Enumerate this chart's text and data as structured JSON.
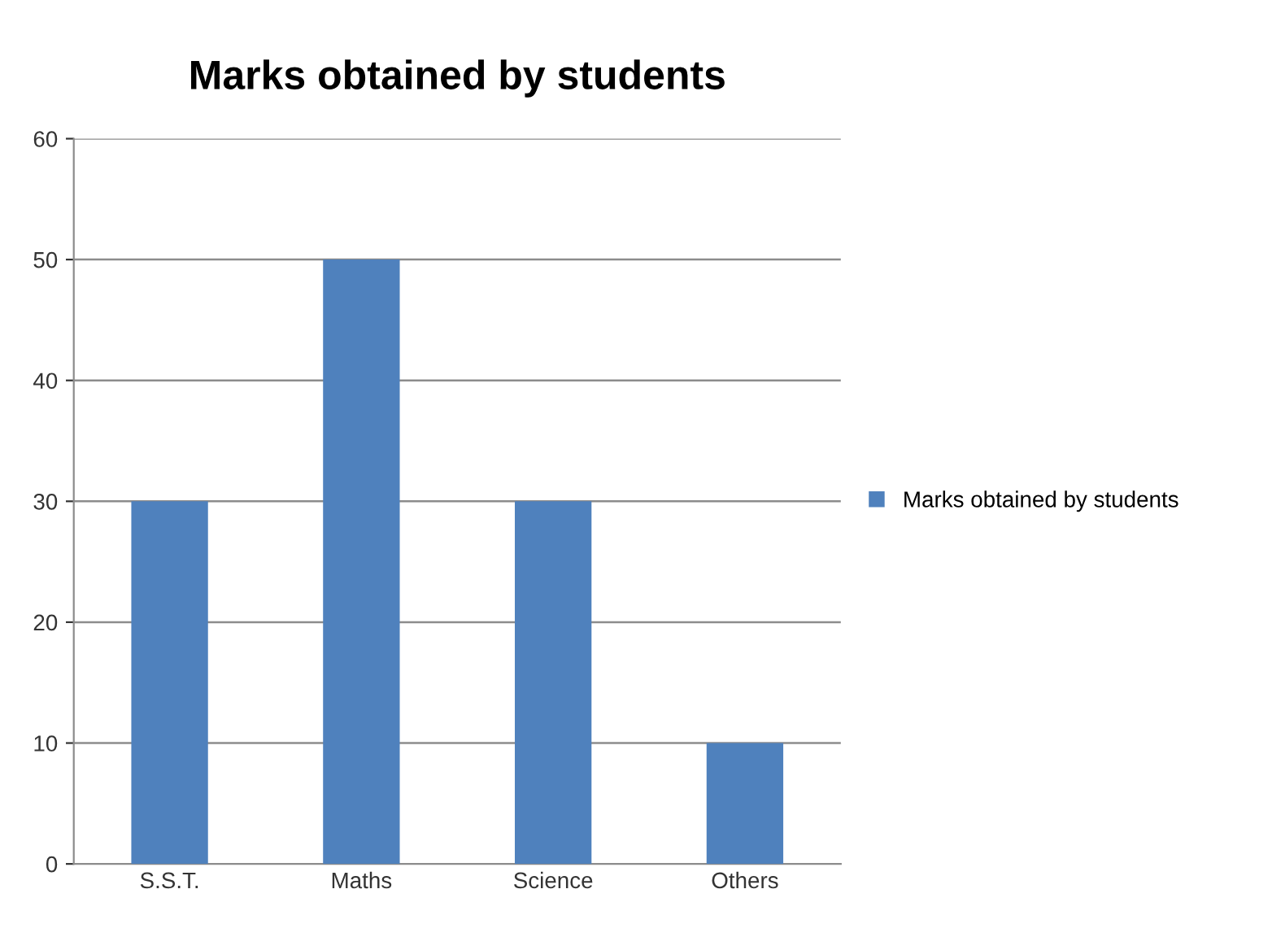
{
  "chart_data": {
    "type": "bar",
    "title": "Marks obtained by students",
    "categories": [
      "S.S.T.",
      "Maths",
      "Science",
      "Others"
    ],
    "series": [
      {
        "name": "Marks obtained by students",
        "color": "#4f81bd",
        "values": [
          30,
          50,
          30,
          10
        ]
      }
    ],
    "ylim": [
      0,
      60
    ],
    "yticks": [
      0,
      10,
      20,
      30,
      40,
      50,
      60
    ],
    "grid": "y",
    "legend": "right"
  }
}
